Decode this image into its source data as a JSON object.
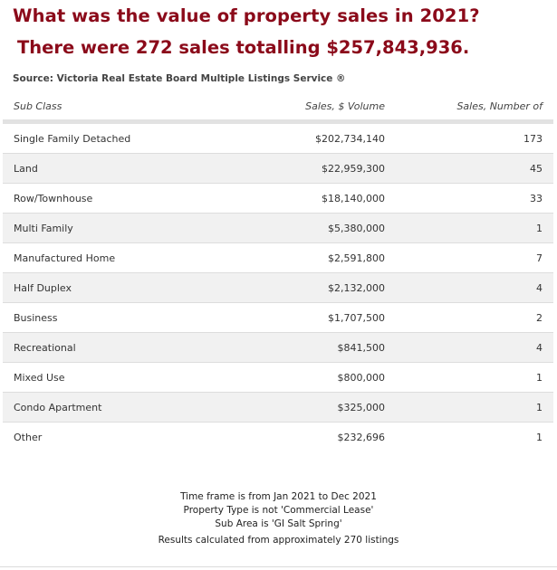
{
  "headline": "What was the value of property sales in 2021?",
  "subheadline": "There were 272 sales totalling $257,843,936.",
  "source": "Source: Victoria Real Estate Board Multiple Listings Service ®",
  "table": {
    "headers": {
      "sub_class": "Sub Class",
      "volume": "Sales, $ Volume",
      "number": "Sales, Number of"
    },
    "rows": [
      {
        "sub_class": "Single Family Detached",
        "volume": "$202,734,140",
        "number": "173"
      },
      {
        "sub_class": "Land",
        "volume": "$22,959,300",
        "number": "45"
      },
      {
        "sub_class": "Row/Townhouse",
        "volume": "$18,140,000",
        "number": "33"
      },
      {
        "sub_class": "Multi Family",
        "volume": "$5,380,000",
        "number": "1"
      },
      {
        "sub_class": "Manufactured Home",
        "volume": "$2,591,800",
        "number": "7"
      },
      {
        "sub_class": "Half Duplex",
        "volume": "$2,132,000",
        "number": "4"
      },
      {
        "sub_class": "Business",
        "volume": "$1,707,500",
        "number": "2"
      },
      {
        "sub_class": "Recreational",
        "volume": "$841,500",
        "number": "4"
      },
      {
        "sub_class": "Mixed Use",
        "volume": "$800,000",
        "number": "1"
      },
      {
        "sub_class": "Condo Apartment",
        "volume": "$325,000",
        "number": "1"
      },
      {
        "sub_class": "Other",
        "volume": "$232,696",
        "number": "1"
      }
    ]
  },
  "footer": {
    "time_frame": "Time frame is from Jan 2021 to Dec 2021",
    "property_type": "Property Type is not 'Commercial Lease'",
    "sub_area": "Sub Area is 'GI Salt Spring'",
    "results": "Results calculated from approximately 270 listings"
  },
  "colors": {
    "headline": "#8b0a1a",
    "row_alt": "#f1f1f1",
    "header_rule": "#e2e2e2"
  }
}
